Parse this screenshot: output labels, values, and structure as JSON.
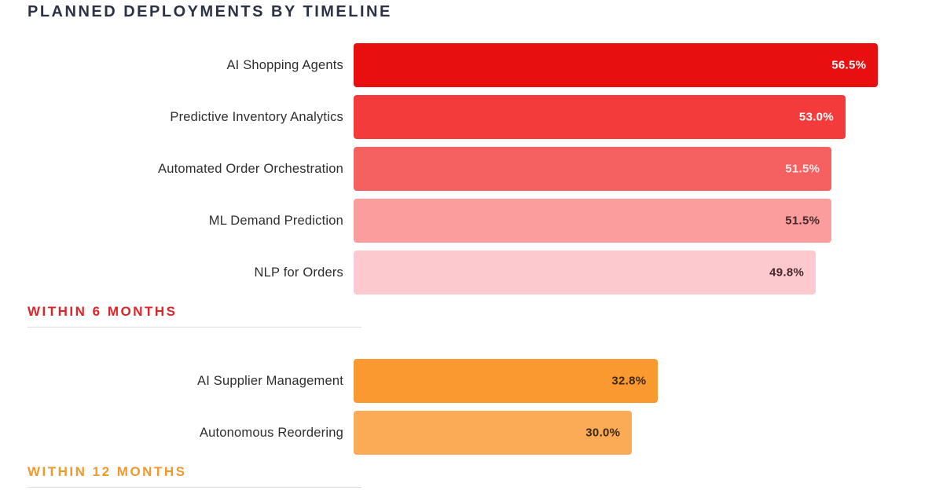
{
  "title": "PLANNED DEPLOYMENTS BY TIMELINE",
  "chart_data": {
    "type": "bar",
    "orientation": "horizontal",
    "title": "PLANNED DEPLOYMENTS BY TIMELINE",
    "xlabel": "",
    "ylabel": "",
    "xlim": [
      0,
      63.5
    ],
    "grid": false,
    "legend": false,
    "groups": [
      {
        "label": "WITHIN 6 MONTHS",
        "accent_color": "#e12328",
        "items": [
          {
            "label": "AI Shopping Agents",
            "value": 56.5,
            "display": "56.5%",
            "color": "#e70f0f",
            "value_color": "#ffffff"
          },
          {
            "label": "Predictive Inventory Analytics",
            "value": 53.0,
            "display": "53.0%",
            "color": "#f43b3b",
            "value_color": "#ffffff"
          },
          {
            "label": "Automated Order Orchestration",
            "value": 51.5,
            "display": "51.5%",
            "color": "#f56060",
            "value_color": "#ffe9e9"
          },
          {
            "label": "ML Demand Prediction",
            "value": 51.5,
            "display": "51.5%",
            "color": "#fb9d9d",
            "value_color": "#47292b"
          },
          {
            "label": "NLP for Orders",
            "value": 49.8,
            "display": "49.8%",
            "color": "#fcc9ce",
            "value_color": "#47292b"
          }
        ]
      },
      {
        "label": "WITHIN 12 MONTHS",
        "accent_color": "#f0992e",
        "items": [
          {
            "label": "AI Supplier Management",
            "value": 32.8,
            "display": "32.8%",
            "color": "#fb9931",
            "value_color": "#3e2a13"
          },
          {
            "label": "Autonomous Reordering",
            "value": 30.0,
            "display": "30.0%",
            "color": "#fbab55",
            "value_color": "#3e2a13"
          }
        ]
      }
    ]
  }
}
